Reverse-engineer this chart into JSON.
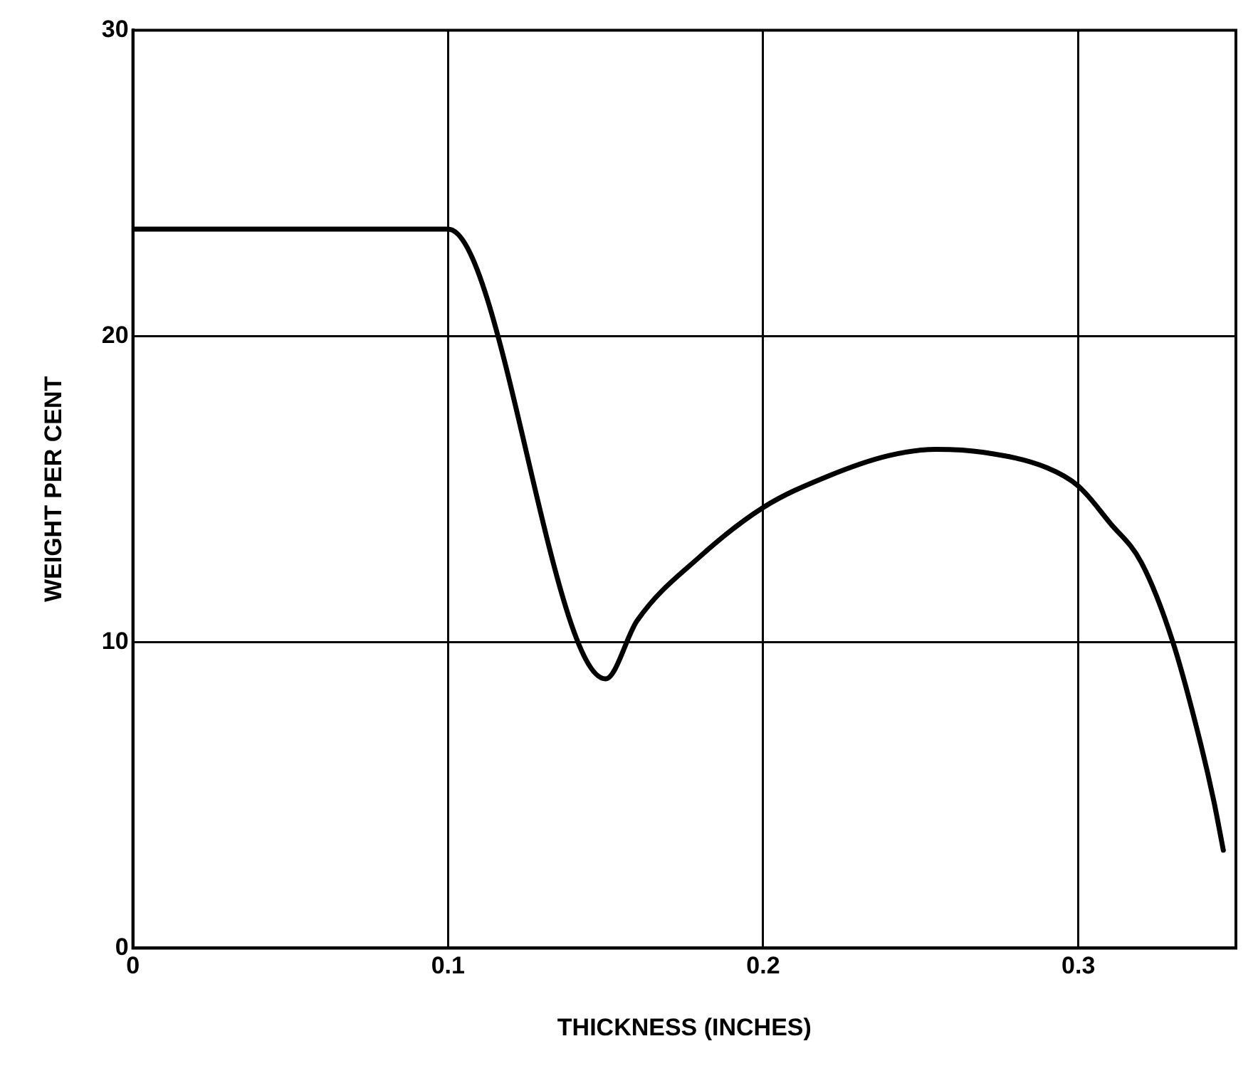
{
  "chart_data": {
    "type": "line",
    "xlabel": "THICKNESS (INCHES)",
    "ylabel": "WEIGHT PER CENT",
    "xlim": [
      0,
      0.35
    ],
    "ylim": [
      0,
      30
    ],
    "xticks": [
      0,
      0.1,
      0.2,
      0.3
    ],
    "yticks": [
      0,
      10,
      20,
      30
    ],
    "grid": true,
    "legend": false,
    "marker": "none",
    "line_style": "solid",
    "series": [
      {
        "color": "#000000",
        "x": [
          0,
          0.1,
          0.15,
          0.16,
          0.18,
          0.2,
          0.22,
          0.24,
          0.255,
          0.27,
          0.29,
          0.3,
          0.31,
          0.32,
          0.33,
          0.339,
          0.343,
          0.346
        ],
        "values": [
          23.5,
          23.5,
          8.8,
          10.7,
          12.8,
          14.4,
          15.4,
          16.1,
          16.3,
          16.2,
          15.7,
          15.1,
          13.9,
          12.6,
          10,
          6.6,
          4.8,
          3.2
        ]
      }
    ]
  }
}
